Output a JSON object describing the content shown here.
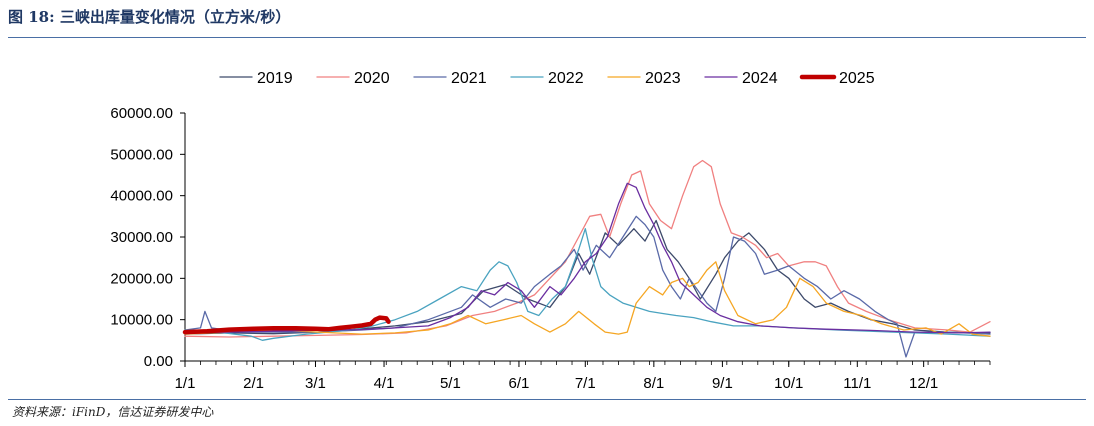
{
  "header": {
    "title": "图 18:  三峡出库量变化情况（立方米/秒）"
  },
  "footer": {
    "source": "资料来源：iFinD，信达证券研发中心"
  },
  "colors": {
    "2019": "#3d4a6b",
    "2020": "#f08080",
    "2021": "#5a6aa8",
    "2022": "#4aa3c0",
    "2023": "#f5a623",
    "2024": "#6a2ea0",
    "2025": "#c00000",
    "axis": "#000000",
    "rule": "#4a6fa5"
  },
  "chart_data": {
    "type": "line",
    "title": "",
    "xlabel": "",
    "ylabel": "",
    "ylim": [
      0,
      60000
    ],
    "xlim_days": [
      0,
      364
    ],
    "grid": false,
    "legend_position": "top-center",
    "yticks": [
      0,
      10000,
      20000,
      30000,
      40000,
      50000,
      60000
    ],
    "ytick_labels": [
      "0.00",
      "10000.00",
      "20000.00",
      "30000.00",
      "40000.00",
      "50000.00",
      "60000.00"
    ],
    "xticks_days": [
      0,
      31,
      59,
      90,
      120,
      151,
      181,
      212,
      243,
      273,
      304,
      334
    ],
    "xtick_labels": [
      "1/1",
      "2/1",
      "3/1",
      "4/1",
      "5/1",
      "6/1",
      "7/1",
      "8/1",
      "9/1",
      "10/1",
      "11/1",
      "12/1"
    ],
    "series": [
      {
        "name": "2019",
        "width": 1.3,
        "points": [
          [
            0,
            6500
          ],
          [
            20,
            6800
          ],
          [
            40,
            6600
          ],
          [
            60,
            7000
          ],
          [
            80,
            7800
          ],
          [
            95,
            8500
          ],
          [
            110,
            9500
          ],
          [
            125,
            11500
          ],
          [
            135,
            17000
          ],
          [
            145,
            18500
          ],
          [
            155,
            15000
          ],
          [
            165,
            13000
          ],
          [
            172,
            18000
          ],
          [
            178,
            26000
          ],
          [
            183,
            21000
          ],
          [
            190,
            31000
          ],
          [
            196,
            28000
          ],
          [
            203,
            32000
          ],
          [
            208,
            29000
          ],
          [
            213,
            34000
          ],
          [
            218,
            27000
          ],
          [
            223,
            24000
          ],
          [
            228,
            20000
          ],
          [
            233,
            15000
          ],
          [
            240,
            21000
          ],
          [
            244,
            25000
          ],
          [
            250,
            29000
          ],
          [
            255,
            31000
          ],
          [
            262,
            27000
          ],
          [
            268,
            22000
          ],
          [
            273,
            20000
          ],
          [
            280,
            15000
          ],
          [
            285,
            13000
          ],
          [
            292,
            14000
          ],
          [
            300,
            12000
          ],
          [
            310,
            10000
          ],
          [
            320,
            9000
          ],
          [
            330,
            7500
          ],
          [
            345,
            7000
          ],
          [
            364,
            6800
          ]
        ]
      },
      {
        "name": "2020",
        "width": 1.3,
        "points": [
          [
            0,
            6000
          ],
          [
            20,
            5800
          ],
          [
            40,
            6000
          ],
          [
            60,
            6200
          ],
          [
            80,
            6400
          ],
          [
            100,
            6800
          ],
          [
            118,
            8500
          ],
          [
            130,
            11000
          ],
          [
            140,
            12000
          ],
          [
            150,
            14000
          ],
          [
            158,
            16000
          ],
          [
            165,
            20000
          ],
          [
            172,
            24000
          ],
          [
            178,
            30000
          ],
          [
            183,
            35000
          ],
          [
            188,
            35500
          ],
          [
            192,
            30000
          ],
          [
            197,
            38000
          ],
          [
            202,
            45000
          ],
          [
            206,
            46000
          ],
          [
            210,
            38000
          ],
          [
            215,
            34000
          ],
          [
            220,
            32000
          ],
          [
            225,
            40000
          ],
          [
            230,
            47000
          ],
          [
            234,
            48500
          ],
          [
            238,
            47000
          ],
          [
            242,
            38000
          ],
          [
            247,
            31000
          ],
          [
            252,
            30000
          ],
          [
            258,
            28000
          ],
          [
            263,
            25000
          ],
          [
            268,
            26000
          ],
          [
            273,
            23000
          ],
          [
            280,
            24000
          ],
          [
            285,
            24000
          ],
          [
            290,
            23000
          ],
          [
            295,
            18000
          ],
          [
            300,
            14000
          ],
          [
            308,
            12000
          ],
          [
            318,
            10000
          ],
          [
            330,
            8000
          ],
          [
            345,
            7500
          ],
          [
            355,
            7000
          ],
          [
            364,
            9500
          ]
        ]
      },
      {
        "name": "2021",
        "width": 1.3,
        "points": [
          [
            0,
            7500
          ],
          [
            7,
            8000
          ],
          [
            9,
            12000
          ],
          [
            12,
            8000
          ],
          [
            25,
            7000
          ],
          [
            40,
            7000
          ],
          [
            60,
            7000
          ],
          [
            80,
            7500
          ],
          [
            95,
            8000
          ],
          [
            110,
            10000
          ],
          [
            125,
            13000
          ],
          [
            130,
            16000
          ],
          [
            138,
            13000
          ],
          [
            145,
            15000
          ],
          [
            152,
            14000
          ],
          [
            158,
            18000
          ],
          [
            165,
            21000
          ],
          [
            170,
            23000
          ],
          [
            176,
            27000
          ],
          [
            180,
            22000
          ],
          [
            186,
            28000
          ],
          [
            192,
            25000
          ],
          [
            198,
            30000
          ],
          [
            204,
            35000
          ],
          [
            208,
            33000
          ],
          [
            212,
            30000
          ],
          [
            216,
            22000
          ],
          [
            220,
            18000
          ],
          [
            224,
            15000
          ],
          [
            228,
            20000
          ],
          [
            232,
            17000
          ],
          [
            236,
            14000
          ],
          [
            240,
            12000
          ],
          [
            244,
            20000
          ],
          [
            248,
            30000
          ],
          [
            253,
            29000
          ],
          [
            258,
            26000
          ],
          [
            262,
            21000
          ],
          [
            268,
            22000
          ],
          [
            273,
            23000
          ],
          [
            280,
            20000
          ],
          [
            286,
            18000
          ],
          [
            292,
            15000
          ],
          [
            298,
            17000
          ],
          [
            305,
            15000
          ],
          [
            312,
            12000
          ],
          [
            318,
            10000
          ],
          [
            322,
            9000
          ],
          [
            326,
            1000
          ],
          [
            330,
            7000
          ],
          [
            345,
            7000
          ],
          [
            364,
            6500
          ]
        ]
      },
      {
        "name": "2022",
        "width": 1.3,
        "points": [
          [
            0,
            7500
          ],
          [
            15,
            7000
          ],
          [
            30,
            6000
          ],
          [
            35,
            5000
          ],
          [
            40,
            5500
          ],
          [
            55,
            6500
          ],
          [
            65,
            7000
          ],
          [
            75,
            7500
          ],
          [
            85,
            8500
          ],
          [
            95,
            10000
          ],
          [
            105,
            12000
          ],
          [
            115,
            15000
          ],
          [
            125,
            18000
          ],
          [
            132,
            17000
          ],
          [
            138,
            22000
          ],
          [
            142,
            24000
          ],
          [
            146,
            23000
          ],
          [
            150,
            19000
          ],
          [
            155,
            12000
          ],
          [
            160,
            11000
          ],
          [
            166,
            15000
          ],
          [
            172,
            18000
          ],
          [
            178,
            27000
          ],
          [
            181,
            32000
          ],
          [
            184,
            25000
          ],
          [
            188,
            18000
          ],
          [
            192,
            16000
          ],
          [
            198,
            14000
          ],
          [
            204,
            13000
          ],
          [
            210,
            12000
          ],
          [
            216,
            11500
          ],
          [
            222,
            11000
          ],
          [
            230,
            10500
          ],
          [
            238,
            9500
          ],
          [
            248,
            8500
          ],
          [
            260,
            8500
          ],
          [
            275,
            8000
          ],
          [
            295,
            7500
          ],
          [
            320,
            7000
          ],
          [
            345,
            6500
          ],
          [
            364,
            6000
          ]
        ]
      },
      {
        "name": "2023",
        "width": 1.3,
        "points": [
          [
            0,
            6500
          ],
          [
            20,
            7000
          ],
          [
            40,
            7500
          ],
          [
            60,
            7000
          ],
          [
            80,
            6500
          ],
          [
            95,
            6800
          ],
          [
            110,
            7500
          ],
          [
            120,
            9000
          ],
          [
            128,
            11000
          ],
          [
            136,
            9000
          ],
          [
            144,
            10000
          ],
          [
            152,
            11000
          ],
          [
            158,
            9000
          ],
          [
            165,
            7000
          ],
          [
            172,
            9000
          ],
          [
            178,
            12000
          ],
          [
            185,
            9000
          ],
          [
            190,
            7000
          ],
          [
            196,
            6500
          ],
          [
            200,
            7000
          ],
          [
            204,
            14000
          ],
          [
            210,
            18000
          ],
          [
            216,
            16000
          ],
          [
            220,
            19000
          ],
          [
            225,
            20000
          ],
          [
            228,
            18000
          ],
          [
            232,
            19000
          ],
          [
            236,
            22000
          ],
          [
            240,
            24000
          ],
          [
            244,
            17000
          ],
          [
            250,
            11000
          ],
          [
            258,
            9000
          ],
          [
            266,
            10000
          ],
          [
            272,
            13000
          ],
          [
            278,
            20000
          ],
          [
            284,
            18000
          ],
          [
            290,
            14000
          ],
          [
            298,
            12000
          ],
          [
            306,
            11000
          ],
          [
            315,
            9000
          ],
          [
            325,
            7500
          ],
          [
            335,
            8000
          ],
          [
            342,
            6500
          ],
          [
            350,
            9000
          ],
          [
            356,
            6500
          ],
          [
            364,
            6000
          ]
        ]
      },
      {
        "name": "2024",
        "width": 1.3,
        "points": [
          [
            0,
            6800
          ],
          [
            20,
            7000
          ],
          [
            40,
            7200
          ],
          [
            60,
            7400
          ],
          [
            80,
            7600
          ],
          [
            95,
            8000
          ],
          [
            110,
            8500
          ],
          [
            120,
            10500
          ],
          [
            128,
            13000
          ],
          [
            134,
            17000
          ],
          [
            140,
            16000
          ],
          [
            146,
            19000
          ],
          [
            152,
            17000
          ],
          [
            158,
            13000
          ],
          [
            165,
            18000
          ],
          [
            170,
            16000
          ],
          [
            176,
            20000
          ],
          [
            181,
            24000
          ],
          [
            186,
            26000
          ],
          [
            191,
            30000
          ],
          [
            196,
            38000
          ],
          [
            200,
            43000
          ],
          [
            204,
            42000
          ],
          [
            208,
            37000
          ],
          [
            212,
            33000
          ],
          [
            216,
            28000
          ],
          [
            220,
            24000
          ],
          [
            224,
            19000
          ],
          [
            230,
            16000
          ],
          [
            236,
            13000
          ],
          [
            242,
            11000
          ],
          [
            250,
            9500
          ],
          [
            260,
            8500
          ],
          [
            275,
            8000
          ],
          [
            290,
            7700
          ],
          [
            310,
            7400
          ],
          [
            330,
            7000
          ],
          [
            350,
            6800
          ],
          [
            364,
            7000
          ]
        ]
      },
      {
        "name": "2025",
        "width": 4.5,
        "points": [
          [
            0,
            7000
          ],
          [
            10,
            7200
          ],
          [
            20,
            7600
          ],
          [
            31,
            7800
          ],
          [
            40,
            7900
          ],
          [
            50,
            7900
          ],
          [
            59,
            7800
          ],
          [
            65,
            7700
          ],
          [
            70,
            8000
          ],
          [
            75,
            8300
          ],
          [
            80,
            8600
          ],
          [
            84,
            9000
          ],
          [
            86,
            10000
          ],
          [
            88,
            10500
          ],
          [
            91,
            10300
          ],
          [
            92,
            9500
          ]
        ]
      }
    ]
  }
}
